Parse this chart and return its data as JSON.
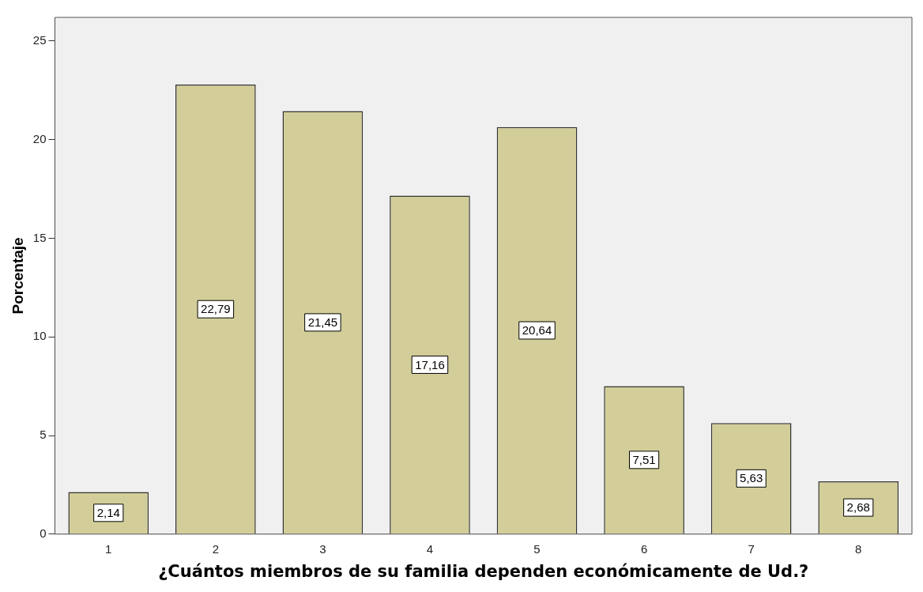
{
  "chart_data": {
    "type": "bar",
    "xlabel": "¿Cuántos miembros de su familia dependen económicamente de Ud.?",
    "ylabel": "Porcentaje",
    "categories": [
      "1",
      "2",
      "3",
      "4",
      "5",
      "6",
      "7",
      "8"
    ],
    "values": [
      2.14,
      22.79,
      21.45,
      17.16,
      20.64,
      7.51,
      5.63,
      2.68
    ],
    "value_labels": [
      "2,14",
      "22,79",
      "21,45",
      "17,16",
      "20,64",
      "7,51",
      "5,63",
      "2,68"
    ],
    "color": "#d3ce99",
    "ylim": [
      0,
      26.2
    ],
    "yticks": [
      0,
      5,
      10,
      15,
      20,
      25
    ],
    "grid": false,
    "legend": false
  }
}
